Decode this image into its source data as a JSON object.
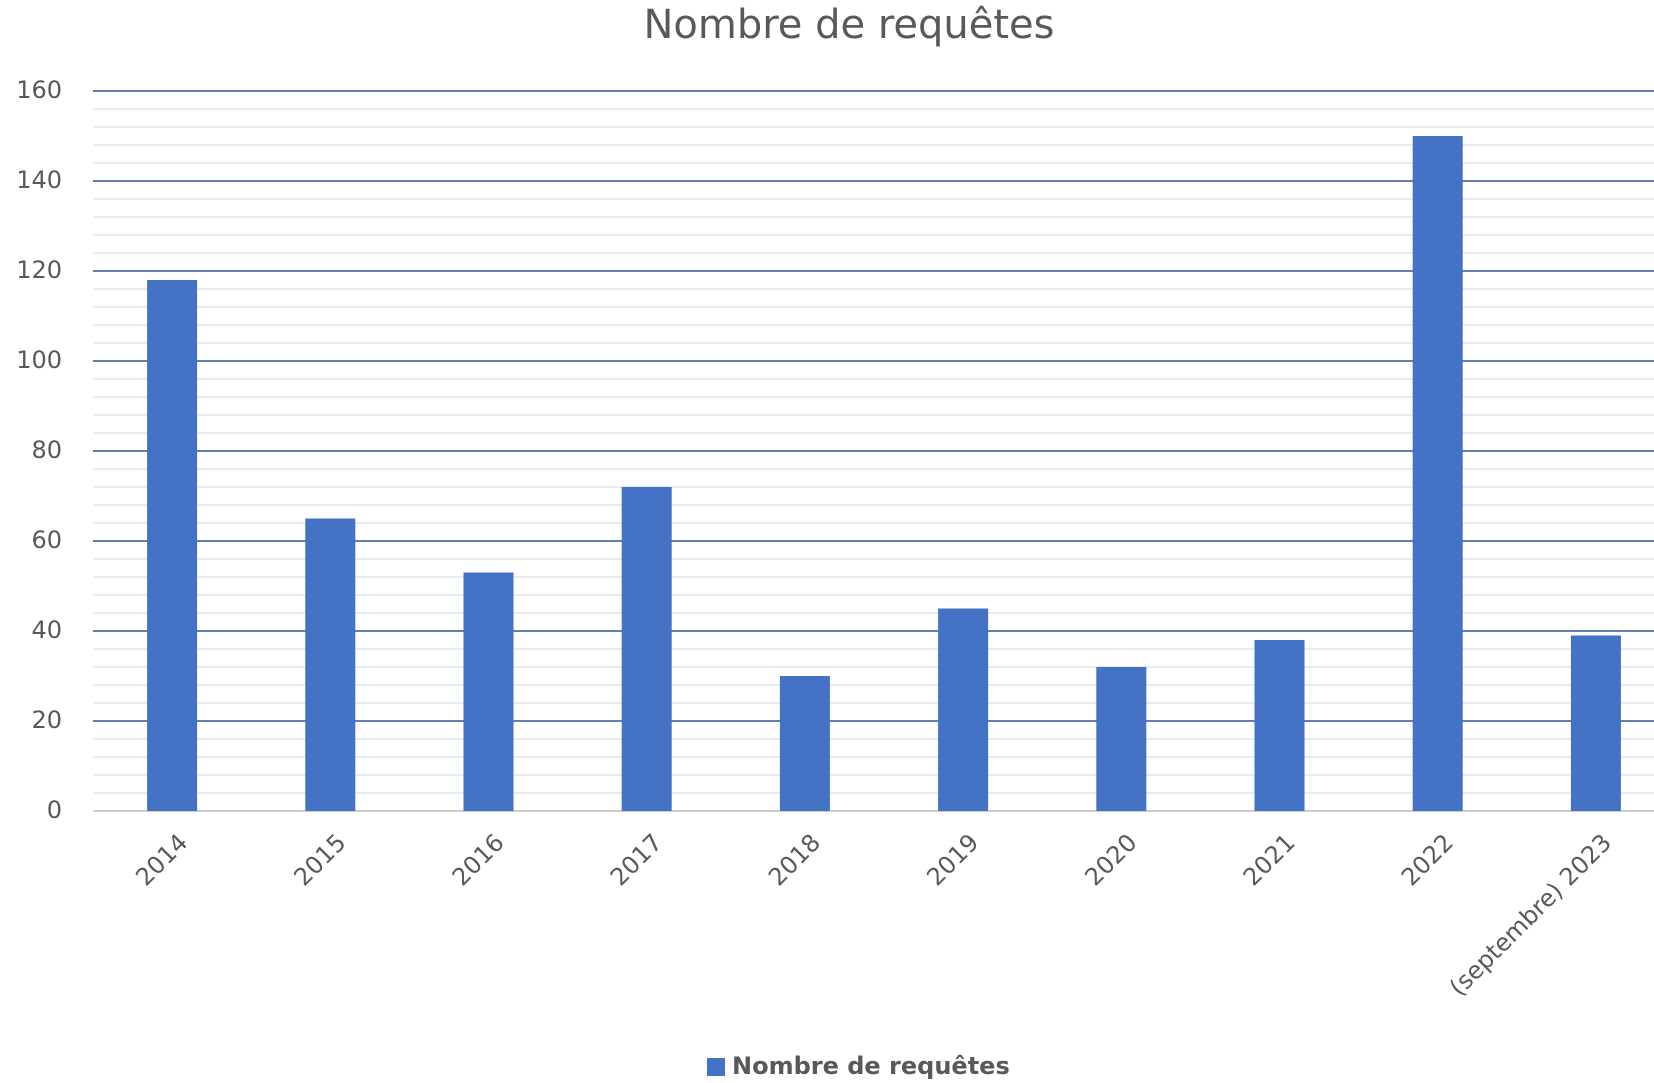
{
  "chart_data": {
    "type": "bar",
    "title": "Nombre de requêtes",
    "categories": [
      "2014",
      "2015",
      "2016",
      "2017",
      "2018",
      "2019",
      "2020",
      "2021",
      "2022",
      "(septembre) 2023"
    ],
    "series": [
      {
        "name": "Nombre de requêtes",
        "color": "#4472c4",
        "values": [
          118,
          65,
          53,
          72,
          30,
          45,
          32,
          38,
          150,
          39
        ]
      }
    ],
    "ylim": [
      0,
      160
    ],
    "yticks": [
      0,
      20,
      40,
      60,
      80,
      100,
      120,
      140,
      160
    ],
    "grid": true,
    "minor_grid": true,
    "legend": "bottom"
  }
}
